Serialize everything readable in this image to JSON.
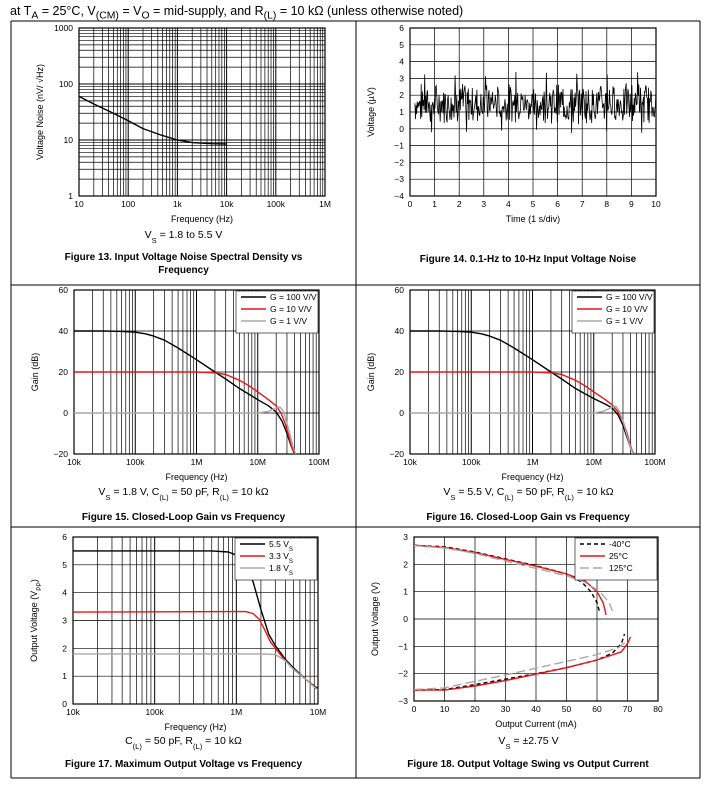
{
  "header": {
    "prefix": "at T",
    "ta_sub": "A",
    "temp": " = 25°C, V",
    "vcm_sub": "(CM)",
    "mid1": " = V",
    "vo_sub": "O",
    "mid2": " = mid-supply, and R",
    "rl_sub": "(L)",
    "suffix": " = 10 kΩ (unless otherwise noted)"
  },
  "colors": {
    "black": "#000000",
    "red": "#e8141a",
    "gray": "#a8a8a8",
    "frame": "#000000"
  },
  "chart_data": [
    {
      "id": "fig13",
      "type": "line",
      "xscale": "log",
      "yscale": "log",
      "xlim": [
        10,
        1000000
      ],
      "ylim": [
        1,
        1000
      ],
      "xticks": [
        "10",
        "100",
        "1k",
        "10k",
        "100k",
        "1M"
      ],
      "yticks": [
        "1",
        "10",
        "100",
        "1000"
      ],
      "xlabel": "Frequency (Hz)",
      "ylabel": "Voltage Noise (nV/ √Hz)",
      "subtitle": "VS = 1.8 to 5.5 V",
      "caption": "Figure 13. Input Voltage Noise Spectral Density vs Frequency",
      "series": [
        {
          "name": "noise",
          "color": "black",
          "dash": "",
          "points": [
            [
              10,
              60
            ],
            [
              20,
              44
            ],
            [
              50,
              30
            ],
            [
              100,
              22
            ],
            [
              200,
              16
            ],
            [
              500,
              12
            ],
            [
              1000,
              10
            ],
            [
              2000,
              9
            ],
            [
              5000,
              8.6
            ],
            [
              10000,
              8.5
            ]
          ]
        }
      ]
    },
    {
      "id": "fig14",
      "type": "line",
      "xscale": "linear",
      "yscale": "linear",
      "xlim": [
        0,
        10
      ],
      "ylim": [
        -4,
        6
      ],
      "xticks": [
        "0",
        "1",
        "2",
        "3",
        "4",
        "5",
        "6",
        "7",
        "8",
        "9",
        "10"
      ],
      "yticks": [
        "-4",
        "-3",
        "-2",
        "-1",
        "0",
        "1",
        "2",
        "3",
        "4",
        "5",
        "6"
      ],
      "xlabel": "Time (1 s/div)",
      "ylabel": "Voltage (µV)",
      "caption": "Figure 14. 0.1-Hz to 10-Hz Input Voltage Noise",
      "noise": {
        "start": 0.2,
        "end": 10,
        "center": 1.5,
        "amplitude": 1.0,
        "min": -0.3,
        "max": 3.4
      }
    },
    {
      "id": "fig15",
      "type": "line",
      "xscale": "log",
      "yscale": "linear",
      "xlim": [
        10000,
        100000000
      ],
      "ylim": [
        -20,
        60
      ],
      "xticks": [
        "10k",
        "100k",
        "1M",
        "10M",
        "100M"
      ],
      "yticks": [
        "-20",
        "0",
        "20",
        "40",
        "60"
      ],
      "xlabel": "Frequency (Hz)",
      "ylabel": "Gain (dB)",
      "subtitle": "VS = 1.8 V, C(L) = 50 pF, R(L) = 10 kΩ",
      "caption": "Figure 15. Closed-Loop Gain vs Frequency",
      "legend": [
        "G = 100 V/V",
        "G = 10 V/V",
        "G = 1 V/V"
      ],
      "series": [
        {
          "name": "G = 100 V/V",
          "color": "black",
          "dash": "",
          "points": [
            [
              10000,
              40
            ],
            [
              30000,
              40
            ],
            [
              60000,
              39.8
            ],
            [
              100000,
              39.4
            ],
            [
              150000,
              38.6
            ],
            [
              200000,
              37.5
            ],
            [
              300000,
              35.5
            ],
            [
              500000,
              31.7
            ],
            [
              1000000,
              26
            ],
            [
              2000000,
              20
            ],
            [
              3000000,
              16.6
            ],
            [
              5000000,
              12
            ],
            [
              10000000,
              6.5
            ],
            [
              15000000,
              3.5
            ],
            [
              20000000,
              0.5
            ],
            [
              25000000,
              -4
            ],
            [
              30000000,
              -10
            ],
            [
              35000000,
              -16
            ],
            [
              40000000,
              -20
            ]
          ]
        },
        {
          "name": "G = 10 V/V",
          "color": "red",
          "dash": "",
          "points": [
            [
              10000,
              20
            ],
            [
              1000000,
              20
            ],
            [
              2000000,
              19.6
            ],
            [
              3000000,
              18.8
            ],
            [
              5000000,
              16
            ],
            [
              7000000,
              13.5
            ],
            [
              10000000,
              10.3
            ],
            [
              15000000,
              6.5
            ],
            [
              20000000,
              3.5
            ],
            [
              24000000,
              0
            ],
            [
              28000000,
              -5
            ],
            [
              32000000,
              -11
            ],
            [
              36000000,
              -17
            ],
            [
              40000000,
              -20
            ]
          ]
        },
        {
          "name": "G = 1 V/V",
          "color": "gray",
          "dash": "",
          "points": [
            [
              10000,
              0
            ],
            [
              10000000,
              0
            ],
            [
              15000000,
              0.8
            ],
            [
              20000000,
              2.5
            ],
            [
              23000000,
              3
            ],
            [
              26000000,
              1
            ],
            [
              30000000,
              -5
            ],
            [
              34000000,
              -11
            ],
            [
              38000000,
              -17
            ],
            [
              42000000,
              -20
            ]
          ]
        }
      ]
    },
    {
      "id": "fig16",
      "type": "line",
      "xscale": "log",
      "yscale": "linear",
      "xlim": [
        10000,
        100000000
      ],
      "ylim": [
        -20,
        60
      ],
      "xticks": [
        "10k",
        "100k",
        "1M",
        "10M",
        "100M"
      ],
      "yticks": [
        "-20",
        "0",
        "20",
        "40",
        "60"
      ],
      "xlabel": "Frequency (Hz)",
      "ylabel": "Gain (dB)",
      "subtitle": "VS = 5.5 V, C(L) = 50 pF, R(L) = 10 kΩ",
      "caption": "Figure 16. Closed-Loop Gain vs Frequency",
      "legend": [
        "G = 100 V/V",
        "G = 10 V/V",
        "G = 1 V/V"
      ],
      "series": [
        {
          "name": "G = 100 V/V",
          "color": "black",
          "dash": "",
          "points": [
            [
              10000,
              40
            ],
            [
              30000,
              40
            ],
            [
              60000,
              39.8
            ],
            [
              100000,
              39.4
            ],
            [
              150000,
              38.6
            ],
            [
              200000,
              37.5
            ],
            [
              300000,
              35.5
            ],
            [
              500000,
              31.7
            ],
            [
              1000000,
              26
            ],
            [
              2000000,
              20
            ],
            [
              3000000,
              16.6
            ],
            [
              5000000,
              12
            ],
            [
              10000000,
              7
            ],
            [
              15000000,
              4.5
            ],
            [
              20000000,
              2.5
            ],
            [
              25000000,
              -1
            ],
            [
              30000000,
              -6
            ],
            [
              35000000,
              -12
            ],
            [
              40000000,
              -17
            ],
            [
              45000000,
              -20
            ]
          ]
        },
        {
          "name": "G = 10 V/V",
          "color": "red",
          "dash": "",
          "points": [
            [
              10000,
              20
            ],
            [
              1000000,
              20
            ],
            [
              2000000,
              19.6
            ],
            [
              3000000,
              18.8
            ],
            [
              5000000,
              16
            ],
            [
              7000000,
              13.5
            ],
            [
              10000000,
              10.3
            ],
            [
              15000000,
              6.8
            ],
            [
              20000000,
              4
            ],
            [
              25000000,
              0.5
            ],
            [
              30000000,
              -4
            ],
            [
              35000000,
              -10
            ],
            [
              40000000,
              -16
            ],
            [
              44000000,
              -20
            ]
          ]
        },
        {
          "name": "G = 1 V/V",
          "color": "gray",
          "dash": "",
          "points": [
            [
              10000,
              0
            ],
            [
              10000000,
              0
            ],
            [
              15000000,
              1
            ],
            [
              20000000,
              3
            ],
            [
              23000000,
              3.3
            ],
            [
              26000000,
              1
            ],
            [
              30000000,
              -4
            ],
            [
              35000000,
              -11
            ],
            [
              40000000,
              -17
            ],
            [
              44000000,
              -20
            ]
          ]
        }
      ]
    },
    {
      "id": "fig17",
      "type": "line",
      "xscale": "log",
      "yscale": "linear",
      "xlim": [
        10000,
        10000000
      ],
      "ylim": [
        0,
        6
      ],
      "xticks": [
        "10k",
        "100k",
        "1M",
        "10M"
      ],
      "yticks": [
        "0",
        "1",
        "2",
        "3",
        "4",
        "5",
        "6"
      ],
      "xlabel": "Frequency (Hz)",
      "ylabel": "Output Voltage (VPP)",
      "subtitle": "C(L) = 50 pF, R(L) = 10 kΩ",
      "caption": "Figure 17. Maximum Output Voltage vs Frequency",
      "legend": [
        "5.5 VS",
        "3.3 VS",
        "1.8 VS"
      ],
      "series": [
        {
          "name": "5.5 VS",
          "color": "black",
          "dash": "",
          "points": [
            [
              10000,
              5.5
            ],
            [
              500000,
              5.5
            ],
            [
              800000,
              5.46
            ],
            [
              1000000,
              5.35
            ],
            [
              1300000,
              5
            ],
            [
              1600000,
              4.4
            ],
            [
              2000000,
              3.4
            ],
            [
              2500000,
              2.5
            ],
            [
              3000000,
              2.1
            ],
            [
              4000000,
              1.6
            ],
            [
              5000000,
              1.3
            ],
            [
              7000000,
              0.9
            ],
            [
              10000000,
              0.55
            ]
          ]
        },
        {
          "name": "3.3 VS",
          "color": "red",
          "dash": "",
          "points": [
            [
              10000,
              3.3
            ],
            [
              1000000,
              3.32
            ],
            [
              1300000,
              3.32
            ],
            [
              1600000,
              3.25
            ],
            [
              1900000,
              3.05
            ],
            [
              2200000,
              2.7
            ],
            [
              2600000,
              2.25
            ],
            [
              3000000,
              2.0
            ],
            [
              4000000,
              1.55
            ],
            [
              5000000,
              1.25
            ],
            [
              7000000,
              0.9
            ],
            [
              10000000,
              0.5
            ]
          ]
        },
        {
          "name": "1.8 VS",
          "color": "gray",
          "dash": "",
          "points": [
            [
              10000,
              1.8
            ],
            [
              2000000,
              1.8
            ],
            [
              3000000,
              1.78
            ],
            [
              4000000,
              1.55
            ],
            [
              5000000,
              1.25
            ],
            [
              7000000,
              0.9
            ],
            [
              10000000,
              0.5
            ]
          ]
        }
      ]
    },
    {
      "id": "fig18",
      "type": "line",
      "xscale": "linear",
      "yscale": "linear",
      "xlim": [
        0,
        80
      ],
      "ylim": [
        -3,
        3
      ],
      "xticks": [
        "0",
        "10",
        "20",
        "30",
        "40",
        "50",
        "60",
        "70",
        "80"
      ],
      "yticks": [
        "-3",
        "-2",
        "-1",
        "0",
        "1",
        "2",
        "3"
      ],
      "xlabel": "Output Current (mA)",
      "ylabel": "Output Voltage (V)",
      "subtitle": "VS = ±2.75 V",
      "caption": "Figure 18. Output Voltage Swing vs Output Current",
      "legend": [
        "-40°C",
        "25°C",
        "125°C"
      ],
      "series": [
        {
          "name": "-40°C",
          "color": "black",
          "dash": "4,3",
          "points": [
            [
              0,
              2.7
            ],
            [
              10,
              2.64
            ],
            [
              20,
              2.45
            ],
            [
              30,
              2.2
            ],
            [
              40,
              1.95
            ],
            [
              50,
              1.65
            ],
            [
              55,
              1.35
            ],
            [
              58,
              1.0
            ],
            [
              60,
              0.6
            ],
            [
              61,
              0.2
            ]
          ]
        },
        {
          "name": "25°C",
          "color": "red",
          "dash": "",
          "points": [
            [
              0,
              2.7
            ],
            [
              10,
              2.62
            ],
            [
              20,
              2.43
            ],
            [
              30,
              2.18
            ],
            [
              40,
              1.93
            ],
            [
              50,
              1.65
            ],
            [
              56,
              1.4
            ],
            [
              60,
              1.0
            ],
            [
              62,
              0.6
            ],
            [
              63,
              0.15
            ]
          ]
        },
        {
          "name": "125°C",
          "color": "gray",
          "dash": "9,4",
          "points": [
            [
              0,
              2.68
            ],
            [
              10,
              2.6
            ],
            [
              20,
              2.4
            ],
            [
              30,
              2.12
            ],
            [
              40,
              1.85
            ],
            [
              50,
              1.58
            ],
            [
              56,
              1.35
            ],
            [
              61,
              1.0
            ],
            [
              64,
              0.6
            ],
            [
              65,
              0.3
            ]
          ]
        },
        {
          "name": "-40°C",
          "color": "black",
          "dash": "4,3",
          "points": [
            [
              0,
              -2.6
            ],
            [
              10,
              -2.58
            ],
            [
              20,
              -2.4
            ],
            [
              30,
              -2.2
            ],
            [
              40,
              -2.0
            ],
            [
              50,
              -1.78
            ],
            [
              60,
              -1.5
            ],
            [
              65,
              -1.25
            ],
            [
              68,
              -0.9
            ],
            [
              69,
              -0.55
            ]
          ]
        },
        {
          "name": "25°C",
          "color": "red",
          "dash": "",
          "points": [
            [
              0,
              -2.6
            ],
            [
              10,
              -2.6
            ],
            [
              20,
              -2.45
            ],
            [
              30,
              -2.25
            ],
            [
              40,
              -2.02
            ],
            [
              50,
              -1.78
            ],
            [
              60,
              -1.5
            ],
            [
              68,
              -1.2
            ],
            [
              70,
              -0.9
            ],
            [
              71,
              -0.65
            ]
          ]
        },
        {
          "name": "125°C",
          "color": "gray",
          "dash": "9,4",
          "points": [
            [
              0,
              -2.58
            ],
            [
              10,
              -2.52
            ],
            [
              20,
              -2.28
            ],
            [
              30,
              -2.05
            ],
            [
              40,
              -1.8
            ],
            [
              50,
              -1.55
            ],
            [
              60,
              -1.3
            ],
            [
              67,
              -1.05
            ],
            [
              70,
              -0.8
            ]
          ]
        }
      ]
    }
  ]
}
